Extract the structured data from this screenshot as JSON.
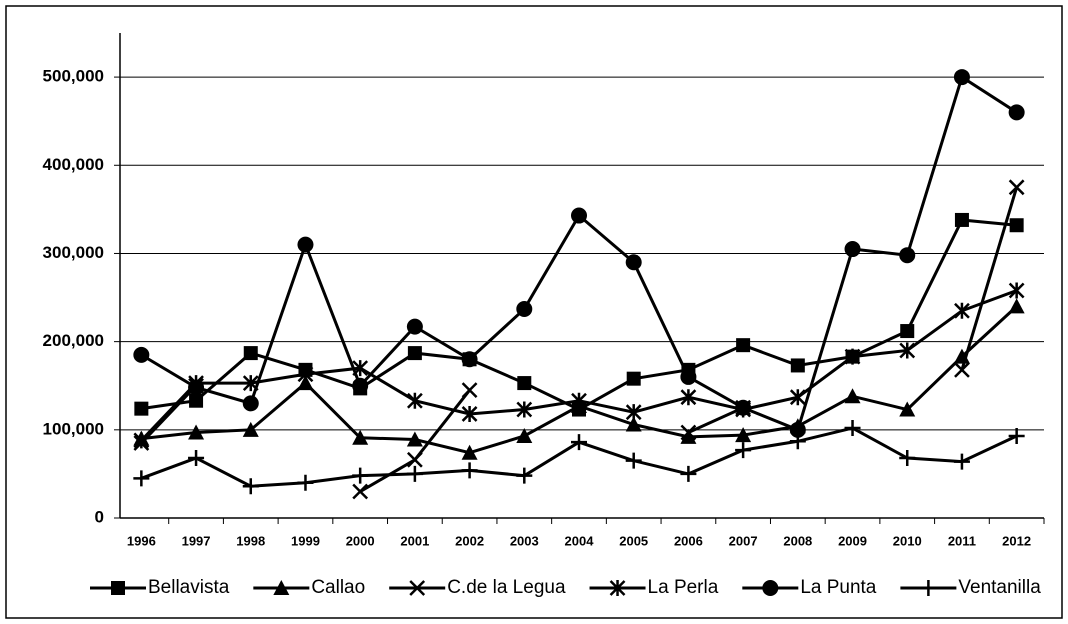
{
  "chart_data": {
    "type": "line",
    "categories": [
      "1996",
      "1997",
      "1998",
      "1999",
      "2000",
      "2001",
      "2002",
      "2003",
      "2004",
      "2005",
      "2006",
      "2007",
      "2008",
      "2009",
      "2010",
      "2011",
      "2012"
    ],
    "series": [
      {
        "name": "Bellavista",
        "color": "#000000",
        "marker": "square",
        "values": [
          124000,
          133000,
          187000,
          168000,
          147000,
          187000,
          180000,
          153000,
          123000,
          158000,
          168000,
          196000,
          173000,
          183000,
          212000,
          338000,
          332000
        ]
      },
      {
        "name": "Callao",
        "color": "#000000",
        "marker": "triangle",
        "values": [
          90000,
          97000,
          100000,
          153000,
          91000,
          89000,
          74000,
          93000,
          127000,
          106000,
          92000,
          94000,
          104000,
          138000,
          123000,
          183000,
          240000
        ]
      },
      {
        "name": "C.de la Legua",
        "color": "#000000",
        "marker": "x",
        "values": [
          85000,
          150000,
          null,
          null,
          30000,
          66000,
          145000,
          null,
          null,
          null,
          97000,
          125000,
          null,
          null,
          null,
          168000,
          375000
        ]
      },
      {
        "name": "La Perla",
        "color": "#000000",
        "marker": "asterisk",
        "values": [
          88000,
          153000,
          153000,
          163000,
          170000,
          133000,
          118000,
          123000,
          133000,
          120000,
          137000,
          123000,
          137000,
          183000,
          190000,
          235000,
          258000
        ]
      },
      {
        "name": "La Punta",
        "color": "#000000",
        "marker": "circle",
        "values": [
          185000,
          148000,
          130000,
          310000,
          150000,
          217000,
          180000,
          237000,
          343000,
          290000,
          160000,
          125000,
          100000,
          305000,
          298000,
          500000,
          460000
        ]
      },
      {
        "name": "Ventanilla",
        "color": "#000000",
        "marker": "plus",
        "values": [
          45000,
          68000,
          36000,
          40000,
          48000,
          50000,
          54000,
          48000,
          86000,
          65000,
          50000,
          77000,
          87000,
          102000,
          68000,
          64000,
          93000
        ]
      }
    ],
    "ylim": [
      0,
      550000
    ],
    "yticks": [
      0,
      {
        "value": 100000,
        "label": "100,000"
      },
      {
        "value": 200000,
        "label": "200,000"
      },
      {
        "value": 300000,
        "label": "300,000"
      },
      {
        "value": 400000,
        "label": "400,000"
      },
      {
        "value": 500000,
        "label": "500,000"
      }
    ],
    "grid": true,
    "legend": "bottom"
  }
}
